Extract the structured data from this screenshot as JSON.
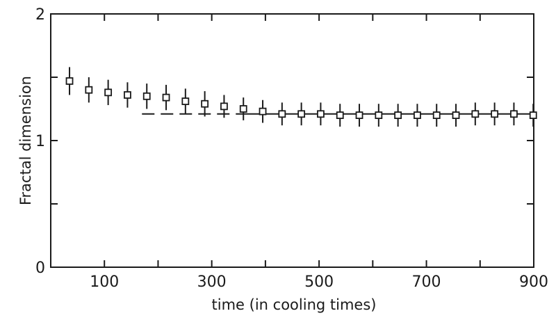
{
  "chart_data": {
    "type": "scatter",
    "title": "",
    "xlabel": "time (in cooling times)",
    "ylabel": "Fractal dimension",
    "xlim": [
      0,
      900
    ],
    "ylim": [
      0,
      2
    ],
    "x_ticks": [
      0,
      100,
      200,
      300,
      400,
      500,
      600,
      700,
      800,
      900
    ],
    "x_tick_labels": [
      "",
      "100",
      "",
      "300",
      "",
      "500",
      "",
      "700",
      "",
      "900"
    ],
    "y_ticks": [
      0,
      0.5,
      1,
      1.5,
      2
    ],
    "y_tick_labels": [
      "0",
      "",
      "1",
      "",
      "2"
    ],
    "grid": false,
    "series": [
      {
        "marker": "open-square",
        "error_bars": true,
        "x": [
          35,
          71,
          107,
          143,
          179,
          215,
          251,
          287,
          323,
          359,
          395,
          431,
          467,
          503,
          539,
          575,
          611,
          647,
          683,
          719,
          755,
          791,
          827,
          863,
          899
        ],
        "y": [
          1.47,
          1.4,
          1.38,
          1.36,
          1.35,
          1.34,
          1.31,
          1.29,
          1.27,
          1.25,
          1.23,
          1.21,
          1.21,
          1.21,
          1.2,
          1.2,
          1.2,
          1.2,
          1.2,
          1.2,
          1.2,
          1.21,
          1.21,
          1.21,
          1.2
        ],
        "error": [
          0.11,
          0.1,
          0.1,
          0.1,
          0.1,
          0.1,
          0.1,
          0.1,
          0.09,
          0.09,
          0.09,
          0.09,
          0.09,
          0.09,
          0.09,
          0.09,
          0.09,
          0.09,
          0.09,
          0.09,
          0.09,
          0.09,
          0.09,
          0.09,
          0.09
        ]
      }
    ],
    "reference_line": {
      "style": "dashed",
      "y": 1.21,
      "x_start": 170,
      "x_end": 360
    },
    "solid_line": {
      "style": "solid",
      "y": 1.21,
      "x_start": 360,
      "x_end": 900
    }
  }
}
